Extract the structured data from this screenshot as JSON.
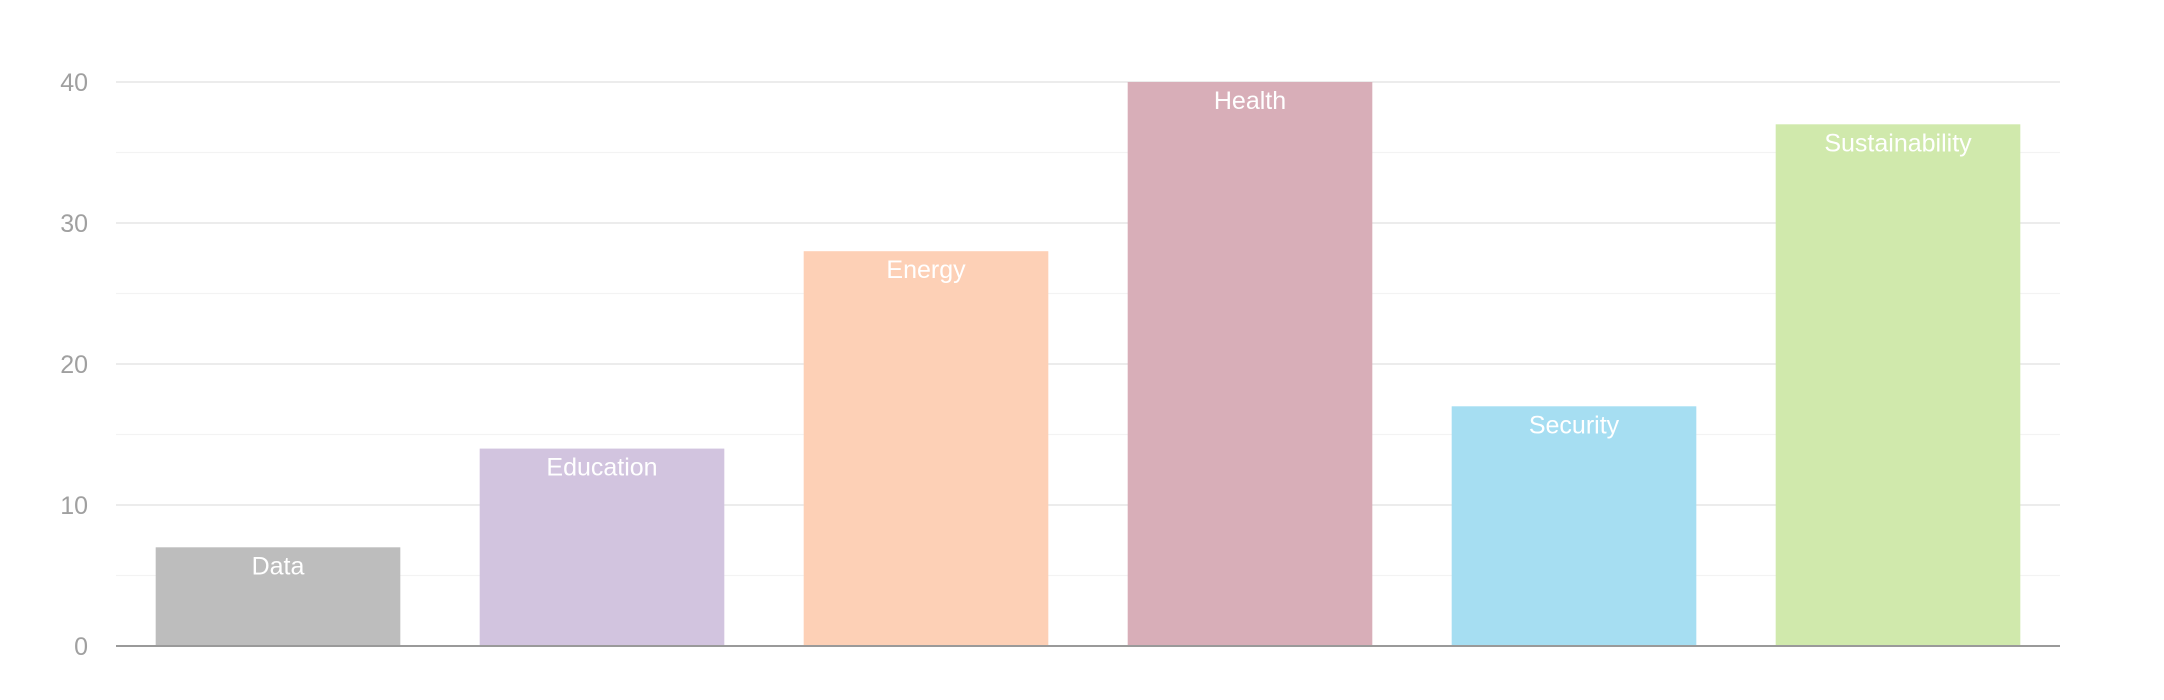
{
  "chart_data": {
    "type": "bar",
    "title": "",
    "xlabel": "",
    "ylabel": "",
    "categories": [
      "Data",
      "Education",
      "Energy",
      "Health",
      "Security",
      "Sustainability"
    ],
    "values": [
      7,
      14,
      28,
      40,
      17,
      37
    ],
    "colors": [
      "#bdbdbd",
      "#d2c4df",
      "#fdd0b6",
      "#d8aeb8",
      "#a6def2",
      "#d0e9ac"
    ],
    "ylim": [
      0,
      40
    ],
    "y_ticks": [
      0,
      10,
      20,
      30,
      40
    ],
    "y_tick_labels": [
      "0",
      "10",
      "20",
      "30",
      "40"
    ],
    "y_minor_ticks": [
      5,
      15,
      25,
      35
    ],
    "grid": true,
    "legend": "none",
    "bar_labels": "inside-top"
  }
}
